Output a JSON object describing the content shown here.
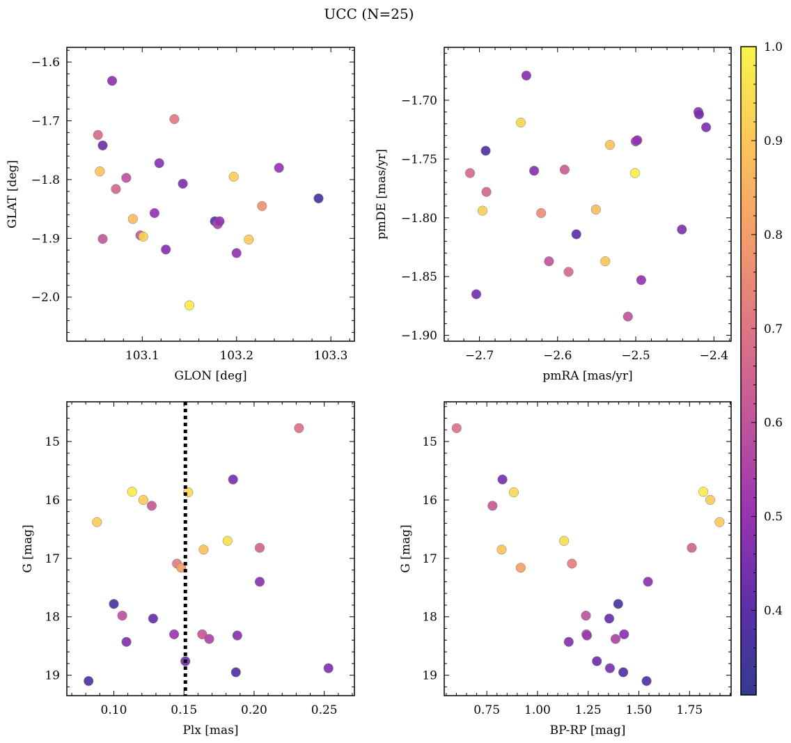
{
  "title": "UCC (N=25)",
  "colorbar": {
    "min": 0.31,
    "max": 1.0,
    "ticks": [
      "0.4",
      "0.5",
      "0.6",
      "0.7",
      "0.8",
      "0.9",
      "1.0"
    ],
    "tick_values": [
      0.4,
      0.5,
      0.6,
      0.7,
      0.8,
      0.9,
      1.0
    ],
    "colormap": "plasma"
  },
  "chart_data": [
    {
      "type": "scatter",
      "xlabel": "GLON [deg]",
      "ylabel": "GLAT [deg]",
      "xlim": [
        103.02,
        103.325
      ],
      "ylim": [
        -2.075,
        -1.575
      ],
      "xticks": [
        103.1,
        103.2,
        103.3
      ],
      "xticklabels": [
        "103.1",
        "103.2",
        "103.3"
      ],
      "yticks": [
        -1.6,
        -1.7,
        -1.8,
        -1.9,
        -2.0
      ],
      "yticklabels": [
        "−1.6",
        "−1.7",
        "−1.8",
        "−1.9",
        "−2.0"
      ],
      "x": [
        103.068,
        103.053,
        103.058,
        103.055,
        103.072,
        103.083,
        103.058,
        103.09,
        103.098,
        103.101,
        103.113,
        103.118,
        103.125,
        103.134,
        103.143,
        103.15,
        103.177,
        103.18,
        103.182,
        103.197,
        103.2,
        103.213,
        103.227,
        103.245,
        103.287
      ],
      "y": [
        -1.632,
        -1.724,
        -1.742,
        -1.786,
        -1.816,
        -1.797,
        -1.901,
        -1.867,
        -1.895,
        -1.897,
        -1.857,
        -1.772,
        -1.919,
        -1.697,
        -1.807,
        -2.014,
        -1.871,
        -1.876,
        -1.871,
        -1.795,
        -1.925,
        -1.902,
        -1.845,
        -1.78,
        -1.832
      ],
      "c": [
        0.49,
        0.67,
        0.43,
        0.9,
        0.66,
        0.59,
        0.61,
        0.88,
        0.62,
        0.93,
        0.5,
        0.48,
        0.47,
        0.71,
        0.46,
        0.98,
        0.4,
        0.55,
        0.49,
        0.92,
        0.49,
        0.91,
        0.77,
        0.5,
        0.36
      ]
    },
    {
      "type": "scatter",
      "xlabel": "pmRA [mas/yr]",
      "ylabel": "pmDE [mas/yr]",
      "xlim": [
        -2.745,
        -2.378
      ],
      "ylim": [
        -1.905,
        -1.655
      ],
      "xticks": [
        -2.7,
        -2.6,
        -2.5,
        -2.4
      ],
      "xticklabels": [
        "−2.7",
        "−2.6",
        "−2.5",
        "−2.4"
      ],
      "yticks": [
        -1.7,
        -1.75,
        -1.8,
        -1.85,
        -1.9
      ],
      "yticklabels": [
        "−1.70",
        "−1.75",
        "−1.80",
        "−1.85",
        "−1.90"
      ],
      "x": [
        -2.64,
        -2.647,
        -2.692,
        -2.712,
        -2.63,
        -2.591,
        -2.691,
        -2.696,
        -2.621,
        -2.551,
        -2.576,
        -2.611,
        -2.586,
        -2.539,
        -2.533,
        -2.51,
        -2.501,
        -2.5,
        -2.498,
        -2.493,
        -2.441,
        -2.42,
        -2.419,
        -2.41,
        -2.704
      ],
      "y": [
        -1.679,
        -1.719,
        -1.743,
        -1.762,
        -1.76,
        -1.759,
        -1.778,
        -1.794,
        -1.796,
        -1.793,
        -1.814,
        -1.837,
        -1.846,
        -1.837,
        -1.738,
        -1.884,
        -1.762,
        -1.735,
        -1.734,
        -1.853,
        -1.81,
        -1.71,
        -1.712,
        -1.723,
        -1.865
      ],
      "c": [
        0.47,
        0.93,
        0.38,
        0.67,
        0.47,
        0.63,
        0.66,
        0.92,
        0.76,
        0.88,
        0.4,
        0.6,
        0.67,
        0.9,
        0.9,
        0.6,
        0.99,
        0.52,
        0.49,
        0.5,
        0.46,
        0.48,
        0.44,
        0.46,
        0.44
      ]
    },
    {
      "type": "scatter",
      "xlabel": "Plx [mas]",
      "ylabel": "G [mag]",
      "xlim": [
        0.0665,
        0.2715
      ],
      "ylim": [
        19.35,
        14.32
      ],
      "xticks": [
        0.1,
        0.15,
        0.2,
        0.25
      ],
      "xticklabels": [
        "0.10",
        "0.15",
        "0.20",
        "0.25"
      ],
      "yticks": [
        15,
        16,
        17,
        18,
        19
      ],
      "yticklabels": [
        "15",
        "16",
        "17",
        "18",
        "19"
      ],
      "vline": 0.151,
      "x": [
        0.232,
        0.185,
        0.113,
        0.153,
        0.121,
        0.088,
        0.127,
        0.181,
        0.164,
        0.204,
        0.145,
        0.148,
        0.204,
        0.1,
        0.106,
        0.128,
        0.109,
        0.143,
        0.163,
        0.168,
        0.188,
        0.151,
        0.187,
        0.253,
        0.082
      ],
      "y": [
        14.77,
        15.65,
        15.86,
        15.87,
        16.0,
        16.38,
        16.1,
        16.7,
        16.85,
        16.82,
        17.09,
        17.16,
        17.4,
        17.78,
        17.98,
        18.03,
        18.43,
        18.3,
        18.3,
        18.38,
        18.32,
        18.76,
        18.95,
        18.88,
        19.1
      ],
      "c": [
        0.69,
        0.45,
        0.98,
        0.94,
        0.91,
        0.91,
        0.62,
        0.95,
        0.89,
        0.65,
        0.72,
        0.8,
        0.48,
        0.36,
        0.59,
        0.42,
        0.47,
        0.51,
        0.61,
        0.55,
        0.48,
        0.43,
        0.38,
        0.46,
        0.38
      ]
    },
    {
      "type": "scatter",
      "xlabel": "BP-RP [mag]",
      "ylabel": "G [mag]",
      "xlim": [
        0.54,
        1.955
      ],
      "ylim": [
        19.35,
        14.32
      ],
      "xticks": [
        0.75,
        1.0,
        1.25,
        1.5,
        1.75
      ],
      "xticklabels": [
        "0.75",
        "1.00",
        "1.25",
        "1.50",
        "1.75"
      ],
      "yticks": [
        15,
        16,
        17,
        18,
        19
      ],
      "yticklabels": [
        "15",
        "16",
        "17",
        "18",
        "19"
      ],
      "x": [
        0.601,
        0.827,
        0.883,
        0.778,
        0.823,
        0.917,
        1.131,
        1.17,
        1.761,
        1.818,
        1.852,
        1.898,
        1.545,
        1.398,
        1.239,
        1.354,
        1.241,
        1.154,
        1.244,
        1.385,
        1.427,
        1.293,
        1.357,
        1.423,
        1.538
      ],
      "y": [
        14.77,
        15.65,
        15.87,
        16.1,
        16.85,
        17.16,
        16.7,
        17.09,
        16.82,
        15.86,
        16.0,
        16.38,
        17.4,
        17.78,
        17.98,
        18.03,
        18.3,
        18.43,
        18.32,
        18.38,
        18.3,
        18.76,
        18.88,
        18.95,
        19.1
      ],
      "c": [
        0.69,
        0.45,
        0.94,
        0.62,
        0.89,
        0.8,
        0.95,
        0.72,
        0.65,
        0.98,
        0.91,
        0.91,
        0.48,
        0.36,
        0.59,
        0.42,
        0.61,
        0.47,
        0.51,
        0.55,
        0.48,
        0.43,
        0.46,
        0.38,
        0.38
      ]
    }
  ]
}
